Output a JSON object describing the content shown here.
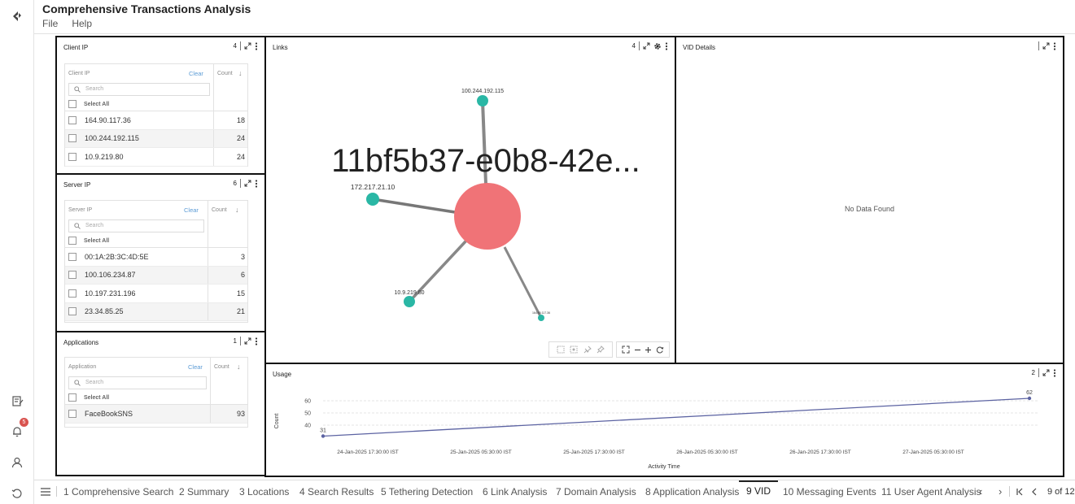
{
  "app": {
    "title": "Comprehensive Transactions Analysis",
    "menu": [
      "File",
      "Help"
    ]
  },
  "rail": {
    "icons": [
      "logo-icon",
      "notes-icon",
      "bell-icon",
      "user-icon",
      "history-icon"
    ],
    "notification_count": "5"
  },
  "panels": {
    "client_ip": {
      "title": "Client IP",
      "count": "4",
      "col_label": "Client IP",
      "clear": "Clear",
      "count_label": "Count",
      "search_placeholder": "Search",
      "select_all": "Select All",
      "rows": [
        {
          "value": "164.90.117.36",
          "count": "18"
        },
        {
          "value": "100.244.192.115",
          "count": "24"
        },
        {
          "value": "10.9.219.80",
          "count": "24"
        }
      ]
    },
    "server_ip": {
      "title": "Server IP",
      "count": "6",
      "col_label": "Server IP",
      "clear": "Clear",
      "count_label": "Count",
      "search_placeholder": "Search",
      "select_all": "Select All",
      "rows": [
        {
          "value": "00:1A:2B:3C:4D:5E",
          "count": "3"
        },
        {
          "value": "100.106.234.87",
          "count": "6"
        },
        {
          "value": "10.197.231.196",
          "count": "15"
        },
        {
          "value": "23.34.85.25",
          "count": "21"
        }
      ]
    },
    "applications": {
      "title": "Applications",
      "count": "1",
      "col_label": "Application",
      "clear": "Clear",
      "count_label": "Count",
      "search_placeholder": "Search",
      "select_all": "Select All",
      "rows": [
        {
          "value": "FaceBookSNS",
          "count": "93"
        }
      ]
    },
    "links": {
      "title": "Links",
      "count": "4",
      "center_label": "11bf5b37-e0b8-42e...",
      "nodes": [
        "100.244.192.115",
        "172.217.21.10",
        "10.9.219.80",
        "164.90.117.36"
      ]
    },
    "vid_details": {
      "title": "VID Details",
      "empty_text": "No Data Found"
    },
    "usage": {
      "title": "Usage",
      "count": "2"
    }
  },
  "chart_data": {
    "type": "line",
    "title": "",
    "xlabel": "Activity Time",
    "ylabel": "Count",
    "x_ticks": [
      "24-Jan-2025 17:30:00 IST",
      "25-Jan-2025 05:30:00 IST",
      "25-Jan-2025 17:30:00 IST",
      "26-Jan-2025 05:30:00 IST",
      "26-Jan-2025 17:30:00 IST",
      "27-Jan-2025 05:30:00 IST"
    ],
    "y_ticks": [
      40,
      50,
      60
    ],
    "ylim": [
      30,
      62
    ],
    "series": [
      {
        "values": [
          31,
          62
        ],
        "point_labels": [
          "31",
          "62"
        ]
      }
    ],
    "grid": true,
    "colors": {
      "line": "#5c63a2"
    }
  },
  "tabs": {
    "items": [
      "1 Comprehensive Search",
      "2 Summary",
      "3 Locations",
      "4 Search Results",
      "5 Tethering Detection",
      "6 Link Analysis",
      "7 Domain Analysis",
      "8 Application Analysis",
      "9 VID",
      "10 Messaging Events",
      "11 User Agent Analysis"
    ],
    "active": "9 VID",
    "page_indicator": "9 of 12"
  },
  "colors": {
    "center_node": "#f07377",
    "leaf_node": "#2ab7a5",
    "link_accent": "#5b9bd5",
    "badge": "#d9534f"
  }
}
